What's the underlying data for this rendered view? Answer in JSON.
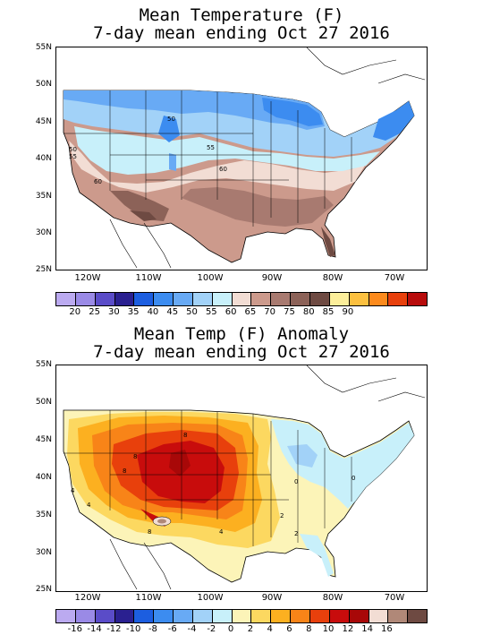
{
  "panel1": {
    "title_line1": "Mean Temperature (F)",
    "title_line2": "7-day mean ending Oct 27 2016",
    "lat_labels": [
      "55N",
      "50N",
      "45N",
      "40N",
      "35N",
      "30N",
      "25N"
    ],
    "lon_labels": [
      "120W",
      "110W",
      "100W",
      "90W",
      "80W",
      "70W"
    ],
    "contour_labels": [
      "50",
      "50",
      "55",
      "55",
      "60",
      "60"
    ],
    "colorbar": {
      "colors": [
        "#bbaaf0",
        "#9a8ae6",
        "#5a4cc8",
        "#2a2090",
        "#1c5ee0",
        "#3c8cf0",
        "#68aaf5",
        "#a2d2f8",
        "#c8f0fa",
        "#f2ddd4",
        "#cc9a8c",
        "#a87a70",
        "#8c6258",
        "#6e4a42",
        "#fcee9a",
        "#fcc040",
        "#fc8a1c",
        "#e8400c",
        "#b80c0c"
      ],
      "labels": [
        "20",
        "25",
        "30",
        "35",
        "40",
        "45",
        "50",
        "55",
        "60",
        "65",
        "70",
        "75",
        "80",
        "85",
        "90"
      ]
    }
  },
  "panel2": {
    "title_line1": "Mean Temp (F) Anomaly",
    "title_line2": "7-day mean ending Oct 27 2016",
    "lat_labels": [
      "55N",
      "50N",
      "45N",
      "40N",
      "35N",
      "30N",
      "25N"
    ],
    "lon_labels": [
      "120W",
      "110W",
      "100W",
      "90W",
      "80W",
      "70W"
    ],
    "contour_labels": [
      "8",
      "8",
      "8",
      "8",
      "4",
      "4",
      "4",
      "2",
      "0",
      "0",
      "2"
    ],
    "colorbar": {
      "colors": [
        "#bbaaf0",
        "#9a8ae6",
        "#5a4cc8",
        "#2a2090",
        "#1c5ee0",
        "#3c8cf0",
        "#68aaf5",
        "#a2d2f8",
        "#c8f0fa",
        "#fcf4b8",
        "#fcd860",
        "#fcb020",
        "#f88418",
        "#e8400c",
        "#c80c0c",
        "#a80808",
        "#f2ddd4",
        "#b08878",
        "#6e4a42"
      ],
      "labels": [
        "-16",
        "-14",
        "-12",
        "-10",
        "-8",
        "-6",
        "-4",
        "-2",
        "0",
        "2",
        "4",
        "6",
        "8",
        "10",
        "12",
        "14",
        "16"
      ]
    }
  }
}
